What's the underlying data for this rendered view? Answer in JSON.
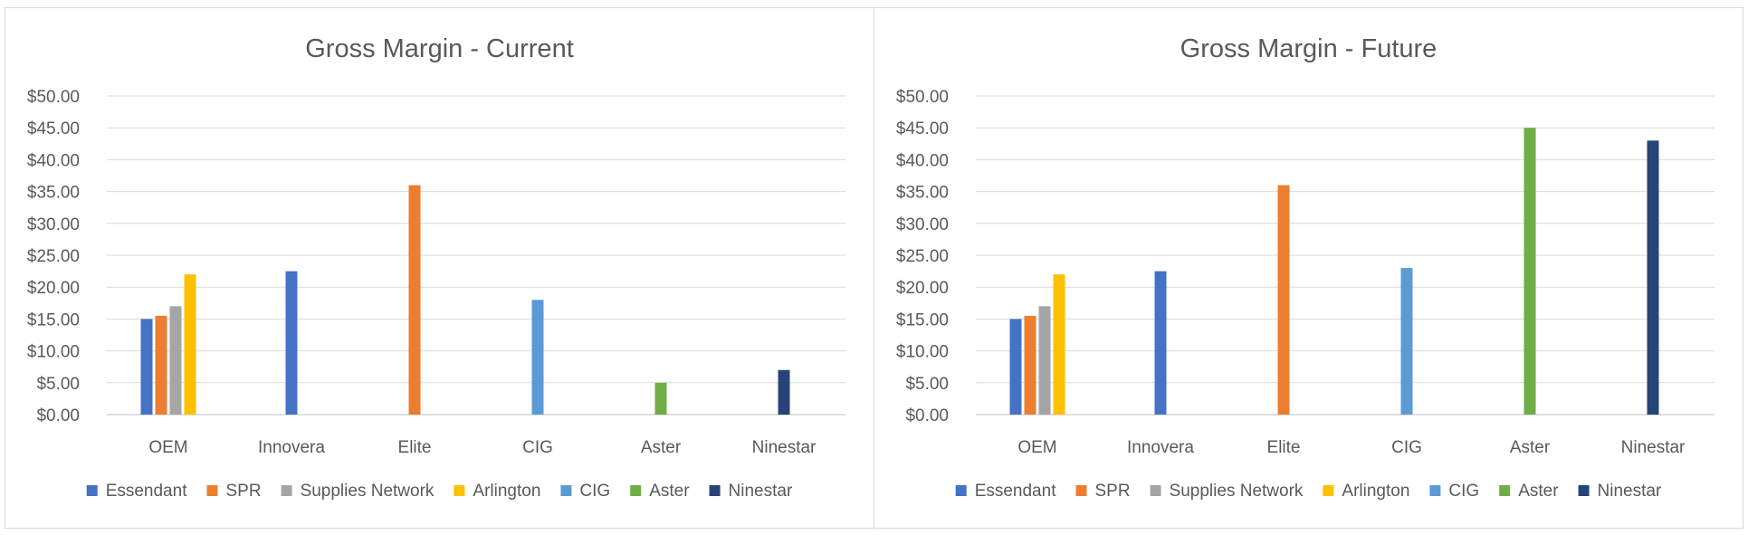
{
  "legend_colors": {
    "Essendant": "#4472C4",
    "SPR": "#ED7D31",
    "Supplies Network": "#A5A5A5",
    "Arlington": "#FFC000",
    "CIG": "#5B9BD5",
    "Aster": "#70AD47",
    "Ninestar": "#264478"
  },
  "chart_data": [
    {
      "type": "bar",
      "title": "Gross Margin - Current",
      "categories": [
        "OEM",
        "Innovera",
        "Elite",
        "CIG",
        "Aster",
        "Ninestar"
      ],
      "series": [
        {
          "name": "Essendant",
          "values": [
            15,
            22.5,
            null,
            null,
            null,
            null
          ]
        },
        {
          "name": "SPR",
          "values": [
            15.5,
            null,
            36,
            null,
            null,
            null
          ]
        },
        {
          "name": "Supplies Network",
          "values": [
            17,
            null,
            null,
            null,
            null,
            null
          ]
        },
        {
          "name": "Arlington",
          "values": [
            22,
            null,
            null,
            null,
            null,
            null
          ]
        },
        {
          "name": "CIG",
          "values": [
            null,
            null,
            null,
            18,
            null,
            null
          ]
        },
        {
          "name": "Aster",
          "values": [
            null,
            null,
            null,
            null,
            5,
            null
          ]
        },
        {
          "name": "Ninestar",
          "values": [
            null,
            null,
            null,
            null,
            null,
            7
          ]
        }
      ],
      "yticks": [
        "$0.00",
        "$5.00",
        "$10.00",
        "$15.00",
        "$20.00",
        "$25.00",
        "$30.00",
        "$35.00",
        "$40.00",
        "$45.00",
        "$50.00"
      ],
      "ylim": [
        0,
        50
      ],
      "grid": true,
      "legend": "bottom",
      "xlabel": "",
      "ylabel": ""
    },
    {
      "type": "bar",
      "title": "Gross Margin - Future",
      "categories": [
        "OEM",
        "Innovera",
        "Elite",
        "CIG",
        "Aster",
        "Ninestar"
      ],
      "series": [
        {
          "name": "Essendant",
          "values": [
            15,
            22.5,
            null,
            null,
            null,
            null
          ]
        },
        {
          "name": "SPR",
          "values": [
            15.5,
            null,
            36,
            null,
            null,
            null
          ]
        },
        {
          "name": "Supplies Network",
          "values": [
            17,
            null,
            null,
            null,
            null,
            null
          ]
        },
        {
          "name": "Arlington",
          "values": [
            22,
            null,
            null,
            null,
            null,
            null
          ]
        },
        {
          "name": "CIG",
          "values": [
            null,
            null,
            null,
            23,
            null,
            null
          ]
        },
        {
          "name": "Aster",
          "values": [
            null,
            null,
            null,
            null,
            45,
            null
          ]
        },
        {
          "name": "Ninestar",
          "values": [
            null,
            null,
            null,
            null,
            null,
            43
          ]
        }
      ],
      "yticks": [
        "$0.00",
        "$5.00",
        "$10.00",
        "$15.00",
        "$20.00",
        "$25.00",
        "$30.00",
        "$35.00",
        "$40.00",
        "$45.00",
        "$50.00"
      ],
      "ylim": [
        0,
        50
      ],
      "grid": true,
      "legend": "bottom",
      "xlabel": "",
      "ylabel": ""
    }
  ]
}
